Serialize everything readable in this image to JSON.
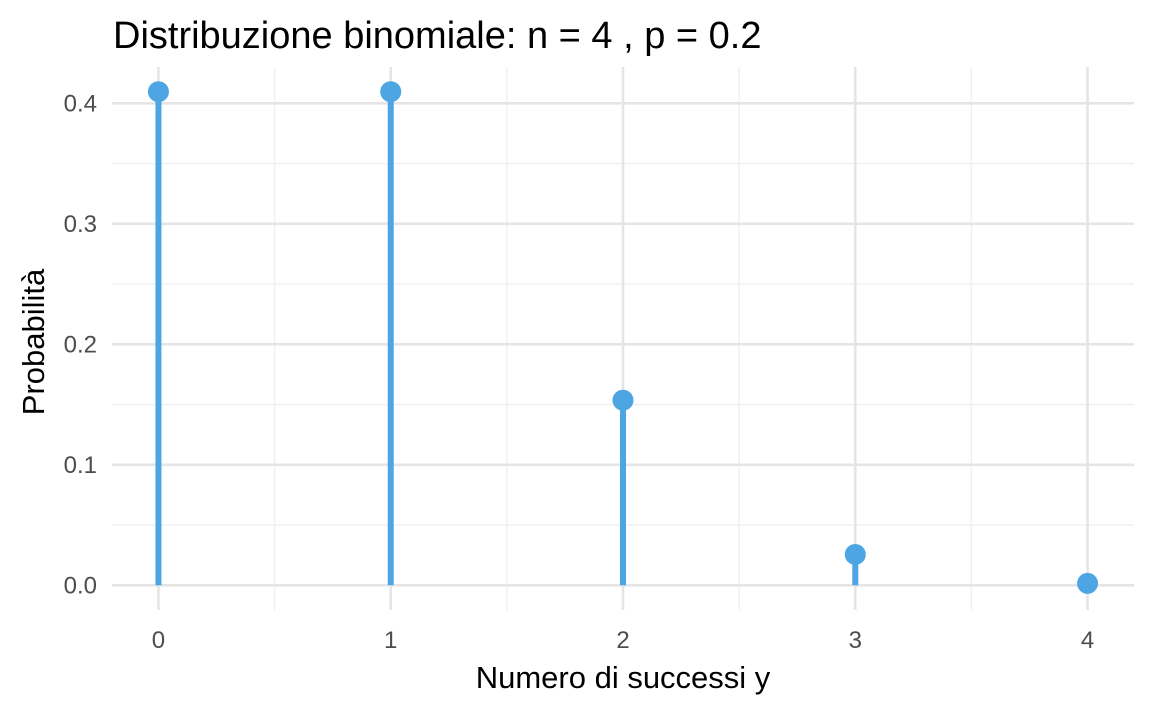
{
  "chart_data": {
    "type": "lollipop",
    "title": "Distribuzione binomiale: n = 4 , p = 0.2",
    "xlabel": "Numero di successi y",
    "ylabel": "Probabilità",
    "x": [
      0,
      1,
      2,
      3,
      4
    ],
    "values": [
      0.4096,
      0.4096,
      0.1536,
      0.0256,
      0.0016
    ],
    "xlim": [
      -0.2,
      4.2
    ],
    "ylim": [
      -0.0205,
      0.4301
    ],
    "x_ticks": [
      0,
      1,
      2,
      3,
      4
    ],
    "x_tick_labels": [
      "0",
      "1",
      "2",
      "3",
      "4"
    ],
    "y_ticks": [
      0.0,
      0.1,
      0.2,
      0.3,
      0.4
    ],
    "y_tick_labels": [
      "0.0",
      "0.1",
      "0.2",
      "0.3",
      "0.4"
    ],
    "grid": true,
    "legend": "none",
    "color": "#4DA6E3"
  }
}
